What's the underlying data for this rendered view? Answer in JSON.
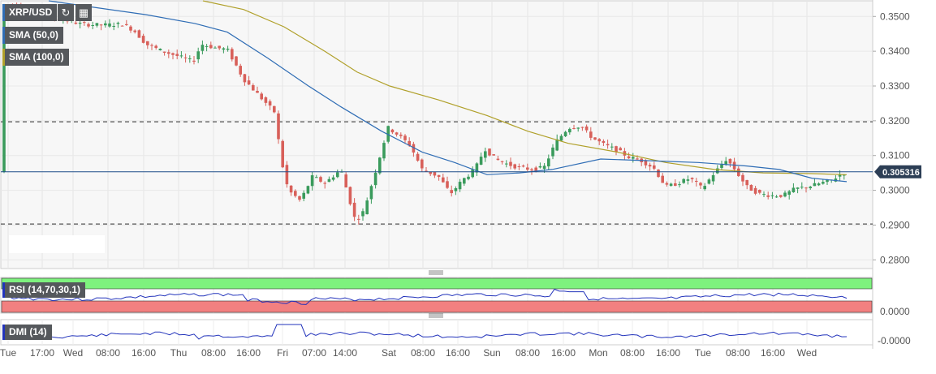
{
  "chart_data": {
    "type": "candlestick",
    "symbol": "XRP/USD",
    "indicators": [
      {
        "name": "SMA (50,0)",
        "color": "#2f6db5"
      },
      {
        "name": "SMA (100,0)",
        "color": "#b0a02a"
      }
    ],
    "y_ticks": [
      "0.3500",
      "0.3400",
      "0.3300",
      "0.3200",
      "0.3100",
      "0.3000",
      "0.2900",
      "0.2800"
    ],
    "ylim": [
      0.2775,
      0.3545
    ],
    "x_ticks": [
      "Tue",
      "17:00",
      "Wed",
      "08:00",
      "16:00",
      "Thu",
      "08:00",
      "16:00",
      "Fri",
      "07:00",
      "14:00",
      "Sat",
      "08:00",
      "16:00",
      "Sun",
      "08:00",
      "16:00",
      "Mon",
      "08:00",
      "16:00",
      "Tue",
      "08:00",
      "16:00",
      "Wed"
    ],
    "last_price": "0.305316",
    "horizontal_lines": [
      0.3197,
      0.2903
    ],
    "rsi": {
      "label": "RSI (14,70,30,1)",
      "tick": "0.0000",
      "color": "#2233bb"
    },
    "dmi": {
      "label": "DMI (14)",
      "tick": "-0.0000",
      "color": "#2233bb"
    },
    "colors": {
      "up": "#3a9b5c",
      "down": "#d8605a",
      "axis_text": "#555555",
      "panel_bg": "#f7f7f7",
      "rsi_overbought": "#7ef27e",
      "rsi_oversold": "#f28080"
    }
  }
}
